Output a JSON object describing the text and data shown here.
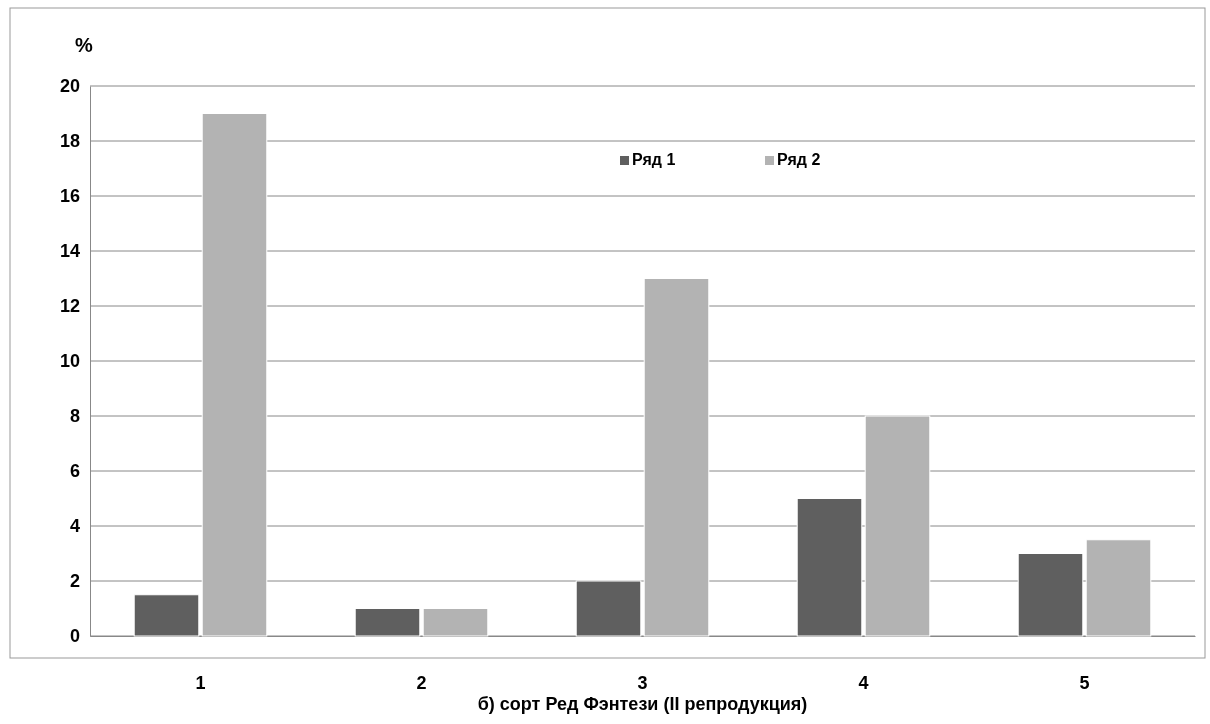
{
  "chart_data": {
    "type": "bar",
    "xlabel": "б) сорт Ред Фэнтези (II репродукция)",
    "ylabel": "%",
    "categories": [
      "1",
      "2",
      "3",
      "4",
      "5"
    ],
    "series": [
      {
        "name": "Ряд 1",
        "color": "#5f5f5f",
        "values": [
          1.5,
          1,
          2,
          5,
          3
        ]
      },
      {
        "name": "Ряд 2",
        "color": "#b3b3b3",
        "values": [
          19,
          1,
          13,
          8,
          3.5
        ]
      }
    ],
    "ylim": [
      0,
      20
    ],
    "yticks": [
      0,
      2,
      4,
      6,
      8,
      10,
      12,
      14,
      16,
      18,
      20
    ],
    "grid": "y",
    "legend": "top"
  }
}
